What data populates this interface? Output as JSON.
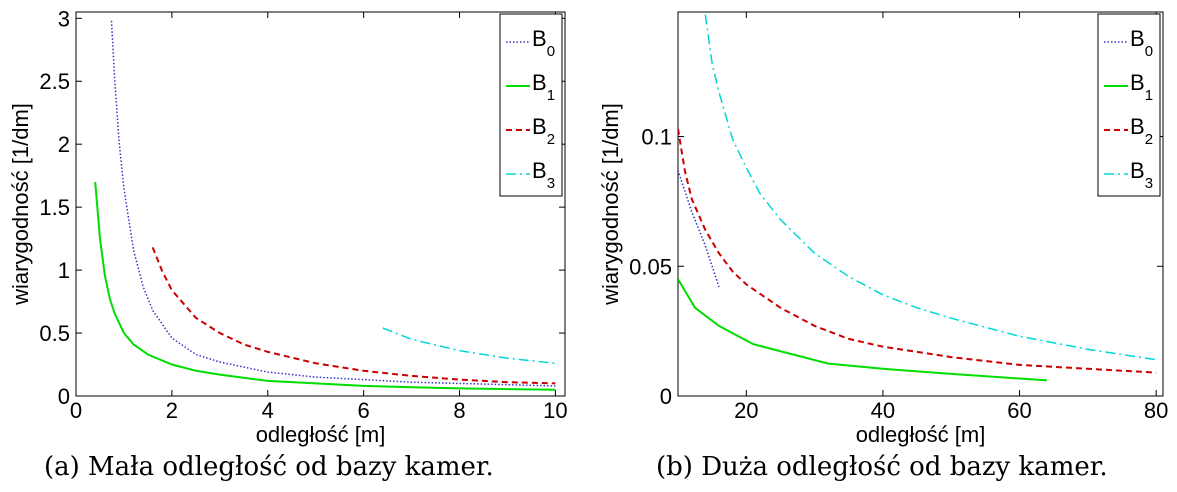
{
  "chart_data": [
    {
      "type": "line",
      "caption": "(a) Mała odległość od bazy kamer.",
      "xlabel": "odległość [m]",
      "ylabel": "wiarygodność [1/dm]",
      "xlim": [
        0,
        10.2
      ],
      "ylim": [
        0,
        3.05
      ],
      "xticks": [
        0,
        2,
        4,
        6,
        8,
        10
      ],
      "yticks": [
        0,
        0.5,
        1,
        1.5,
        2,
        2.5,
        3
      ],
      "xtick_labels": [
        "0",
        "2",
        "4",
        "6",
        "8",
        "10"
      ],
      "ytick_labels": [
        "0",
        "0.5",
        "1",
        "1.5",
        "2",
        "2.5",
        "3"
      ],
      "legend_position": "top-right",
      "series": [
        {
          "name": "B",
          "sub": "0",
          "color": "#3333cc",
          "dash": "1.5 2",
          "width": 1.5,
          "x": [
            0.74,
            0.8,
            0.9,
            1.0,
            1.2,
            1.4,
            1.6,
            2.0,
            2.5,
            3,
            4,
            5,
            6,
            7,
            8,
            9,
            10
          ],
          "y": [
            2.98,
            2.55,
            2.02,
            1.65,
            1.16,
            0.87,
            0.68,
            0.46,
            0.33,
            0.27,
            0.19,
            0.15,
            0.13,
            0.11,
            0.1,
            0.09,
            0.08
          ]
        },
        {
          "name": "B",
          "sub": "1",
          "color": "#00dd00",
          "dash": "",
          "width": 2,
          "x": [
            0.4,
            0.5,
            0.6,
            0.7,
            0.8,
            1.0,
            1.2,
            1.5,
            2,
            2.5,
            3,
            4,
            5,
            6,
            7,
            8,
            9,
            10
          ],
          "y": [
            1.7,
            1.25,
            0.96,
            0.78,
            0.66,
            0.5,
            0.41,
            0.33,
            0.25,
            0.2,
            0.17,
            0.12,
            0.1,
            0.08,
            0.07,
            0.06,
            0.055,
            0.05
          ]
        },
        {
          "name": "B",
          "sub": "2",
          "color": "#cc0000",
          "dash": "6 4",
          "width": 2,
          "x": [
            1.6,
            1.8,
            2,
            2.5,
            3,
            3.5,
            4,
            5,
            6,
            7,
            8,
            9,
            10
          ],
          "y": [
            1.18,
            0.99,
            0.84,
            0.62,
            0.5,
            0.41,
            0.35,
            0.26,
            0.2,
            0.16,
            0.13,
            0.11,
            0.1
          ]
        },
        {
          "name": "B",
          "sub": "3",
          "color": "#00d8d8",
          "dash": "10 4 2 4",
          "width": 1.5,
          "x": [
            6.4,
            7,
            8,
            9,
            10
          ],
          "y": [
            0.54,
            0.45,
            0.36,
            0.3,
            0.26
          ]
        }
      ]
    },
    {
      "type": "line",
      "caption": "(b) Duża odległość od bazy kamer.",
      "xlabel": "odległość [m]",
      "ylabel": "wiarygodność [1/dm]",
      "xlim": [
        10,
        81
      ],
      "ylim": [
        0,
        0.148
      ],
      "xticks": [
        20,
        40,
        60,
        80
      ],
      "yticks": [
        0,
        0.05,
        0.1
      ],
      "xtick_labels": [
        "20",
        "40",
        "60",
        "80"
      ],
      "ytick_labels": [
        "0",
        "0.05",
        "0.1"
      ],
      "legend_position": "top-right",
      "series": [
        {
          "name": "B",
          "sub": "0",
          "color": "#3333cc",
          "dash": "1.5 2",
          "width": 1.5,
          "x": [
            10,
            12,
            14,
            16
          ],
          "y": [
            0.087,
            0.071,
            0.058,
            0.042
          ]
        },
        {
          "name": "B",
          "sub": "1",
          "color": "#00dd00",
          "dash": "",
          "width": 2,
          "x": [
            10,
            12.5,
            16,
            21,
            32,
            40,
            50,
            64
          ],
          "y": [
            0.045,
            0.034,
            0.027,
            0.02,
            0.0125,
            0.0105,
            0.0085,
            0.006
          ]
        },
        {
          "name": "B",
          "sub": "2",
          "color": "#cc0000",
          "dash": "6 4",
          "width": 2,
          "x": [
            10,
            11,
            12,
            14,
            16,
            18,
            20,
            25,
            30,
            35,
            40,
            50,
            60,
            70,
            80
          ],
          "y": [
            0.103,
            0.087,
            0.076,
            0.064,
            0.055,
            0.048,
            0.043,
            0.034,
            0.027,
            0.022,
            0.019,
            0.015,
            0.012,
            0.0105,
            0.009
          ]
        },
        {
          "name": "B",
          "sub": "3",
          "color": "#00d8d8",
          "dash": "10 4 2 4",
          "width": 1.5,
          "x": [
            14,
            15,
            16,
            18,
            20,
            22,
            25,
            30,
            35,
            40,
            45,
            50,
            60,
            70,
            80
          ],
          "y": [
            0.147,
            0.128,
            0.117,
            0.099,
            0.088,
            0.078,
            0.068,
            0.055,
            0.046,
            0.039,
            0.034,
            0.03,
            0.023,
            0.018,
            0.014
          ]
        }
      ]
    }
  ]
}
